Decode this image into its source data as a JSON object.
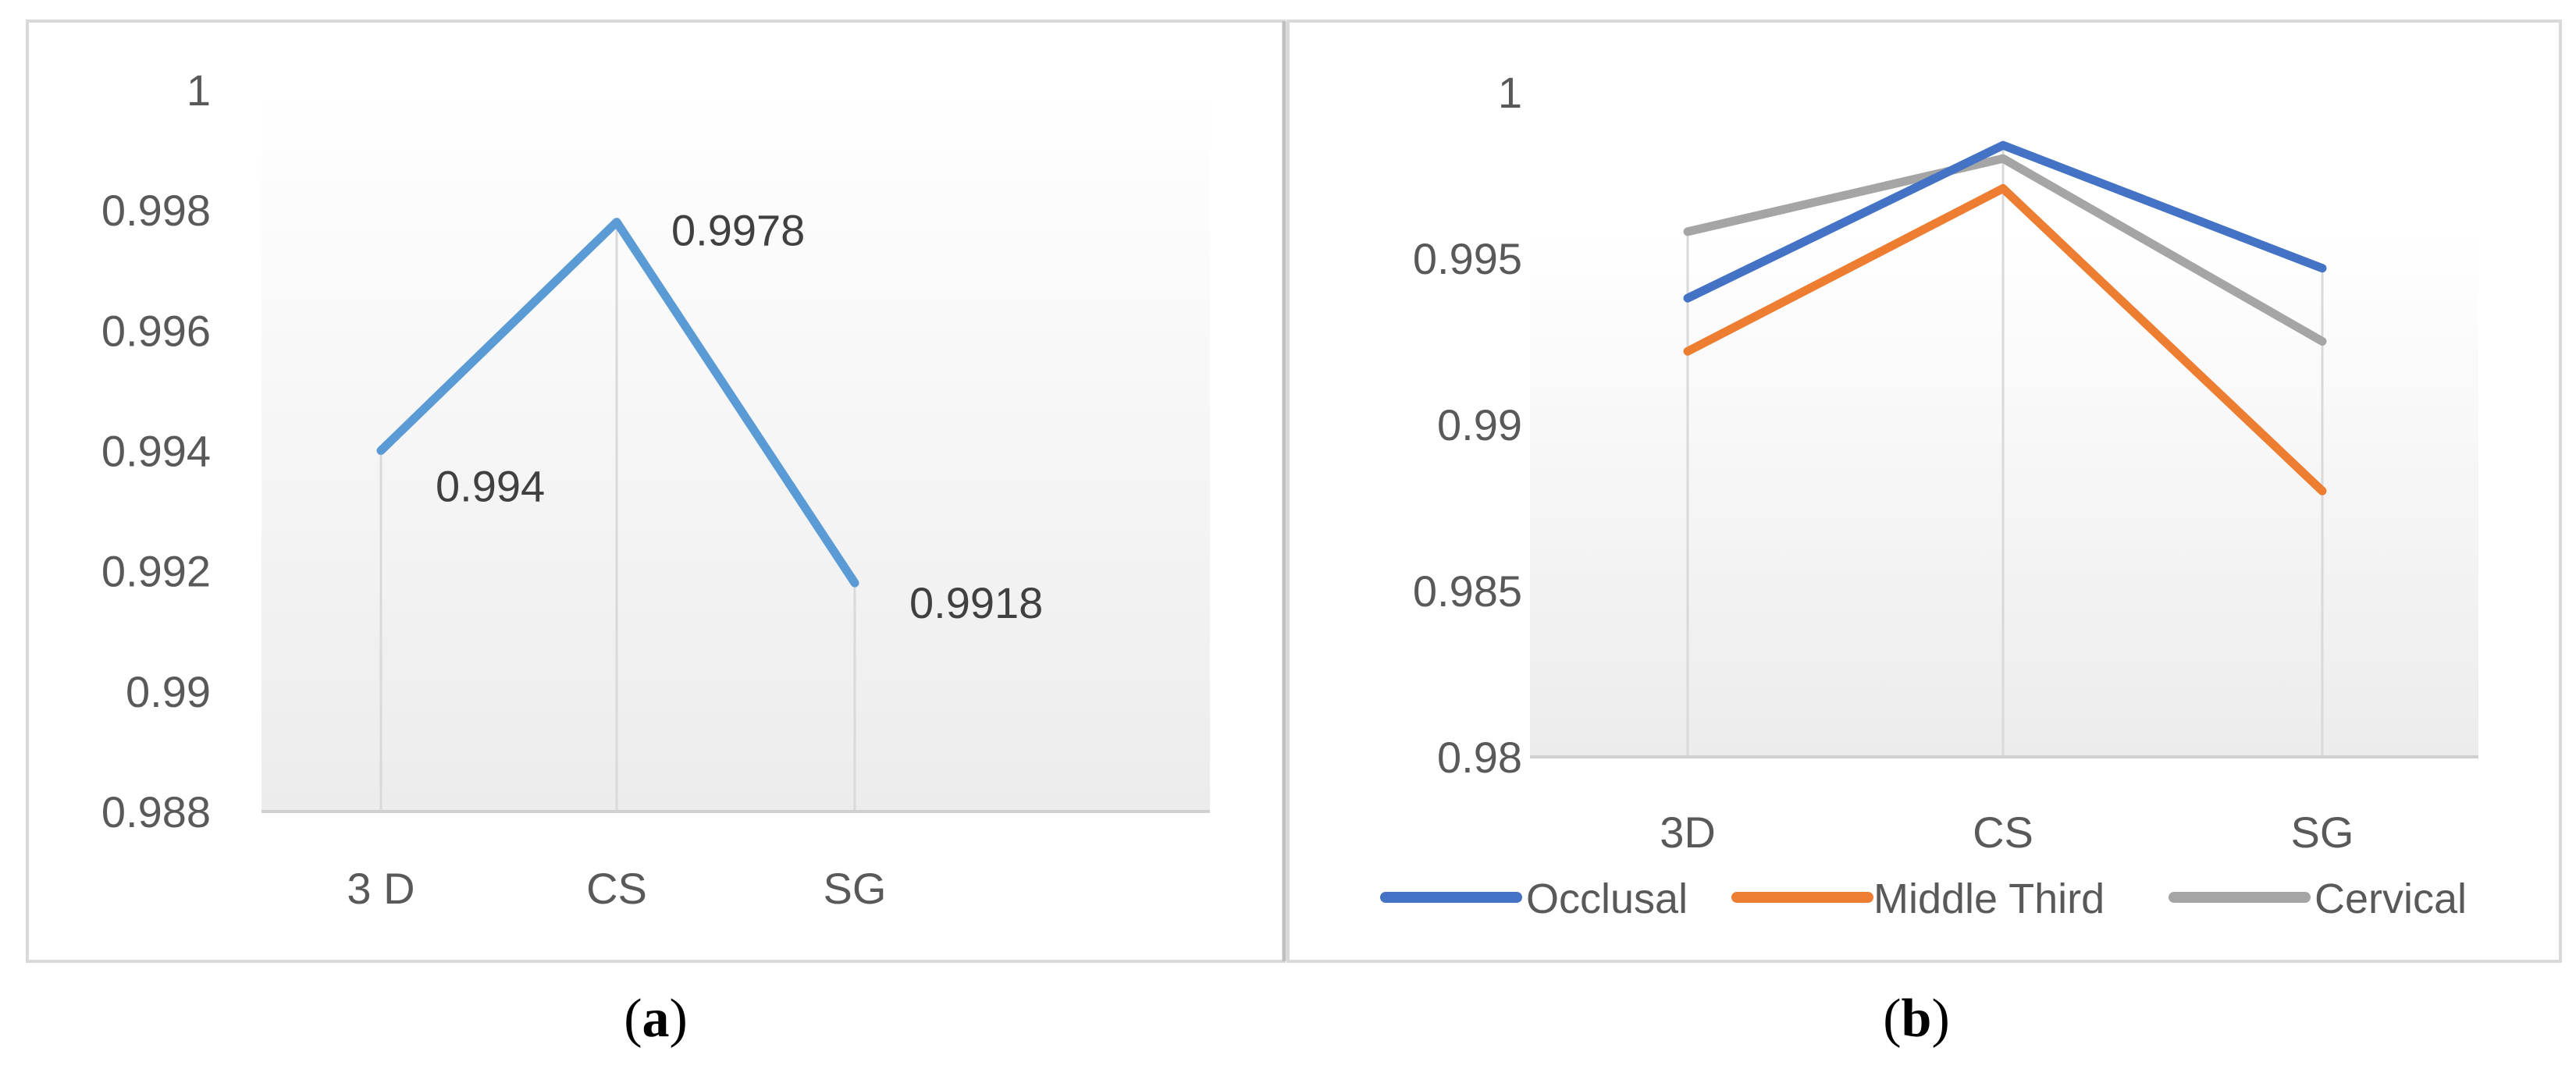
{
  "captions": {
    "a": "a",
    "b": "b"
  },
  "chart_data": [
    {
      "type": "line",
      "categories": [
        "3 D",
        "CS",
        "SG"
      ],
      "series": [
        {
          "values": [
            0.994,
            0.9978,
            0.9918
          ],
          "color": "#5B9BD5"
        }
      ],
      "data_labels": [
        "0.994",
        "0.9978",
        "0.9918"
      ],
      "yticks": [
        "0.988",
        "0.99",
        "0.992",
        "0.994",
        "0.996",
        "0.998",
        "1"
      ],
      "ylim": [
        0.988,
        1
      ],
      "legend": "none",
      "grid": "drop lines at categories"
    },
    {
      "type": "line",
      "categories": [
        "3D",
        "CS",
        "SG"
      ],
      "series": [
        {
          "name": "Occlusal",
          "values": [
            0.9938,
            0.9984,
            0.9947
          ],
          "color": "#4472C4"
        },
        {
          "name": "Middle Third",
          "values": [
            0.9922,
            0.9971,
            0.988
          ],
          "color": "#ED7D31"
        },
        {
          "name": "Cervical",
          "values": [
            0.9958,
            0.998,
            0.9925
          ],
          "color": "#A5A5A5"
        }
      ],
      "yticks": [
        "0.98",
        "0.985",
        "0.99",
        "0.995",
        "1"
      ],
      "ylim": [
        0.98,
        1
      ],
      "legend": "bottom",
      "grid": "drop lines at categories"
    }
  ]
}
